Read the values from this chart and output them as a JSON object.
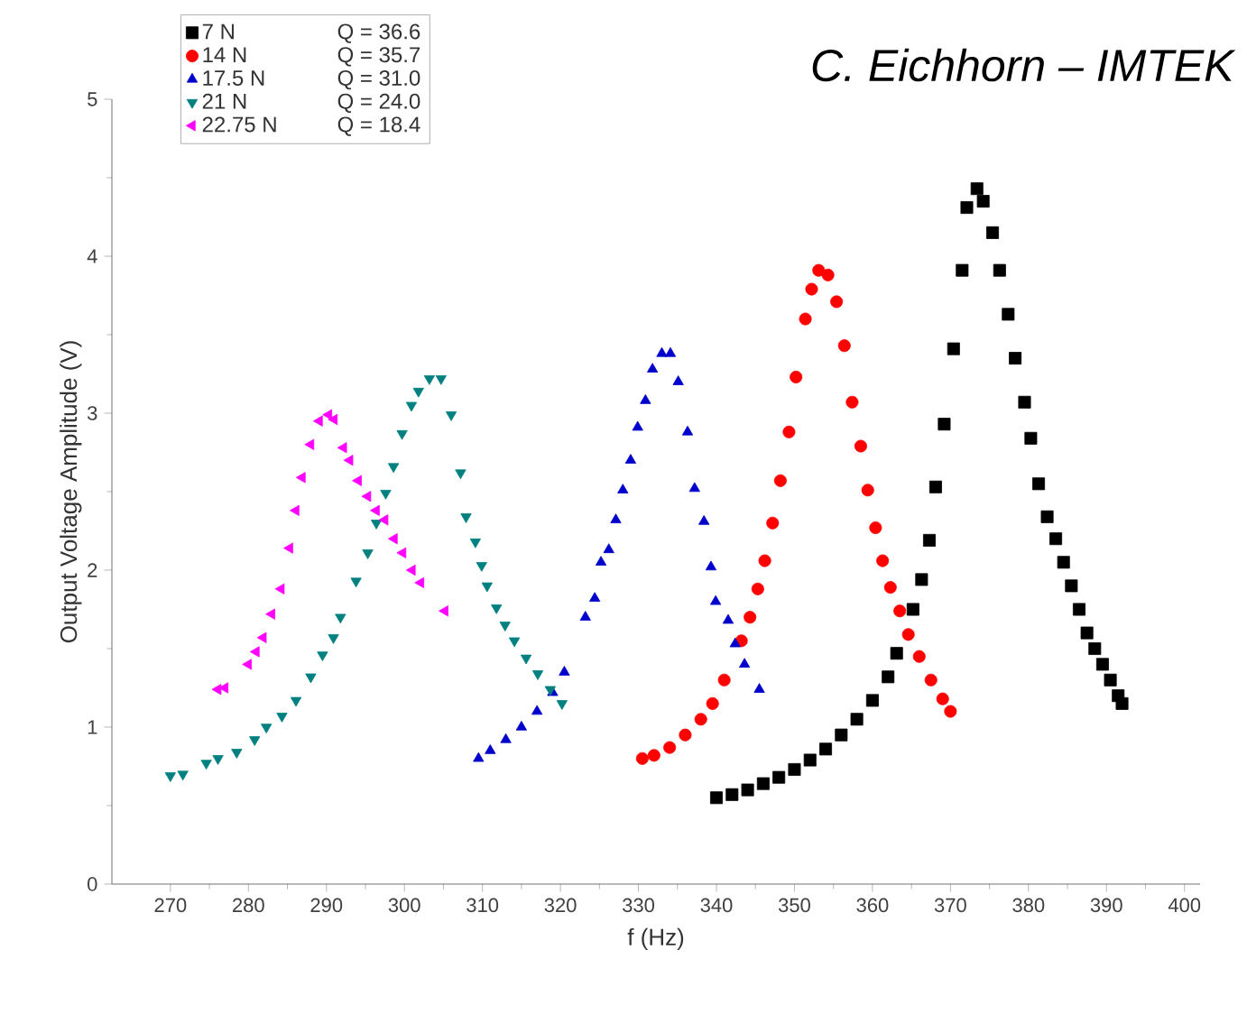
{
  "chart_data": {
    "type": "scatter",
    "xlabel": "f (Hz)",
    "ylabel": "Output Voltage Amplitude (V)",
    "xlim": [
      262.5,
      402
    ],
    "ylim": [
      0,
      5
    ],
    "xticks": [
      270,
      280,
      290,
      300,
      310,
      320,
      330,
      340,
      350,
      360,
      370,
      380,
      390,
      400
    ],
    "yticks": [
      0,
      1,
      2,
      3,
      4,
      5
    ],
    "legend": "top left",
    "annotations": [
      "C. Eichhorn – IMTEK",
      "Q = 36.6",
      "Q = 35.7",
      "Q = 31.0",
      "Q = 24.0",
      "Q = 18.4"
    ],
    "series": [
      {
        "name": "7 N",
        "color": "#000000",
        "marker": "square",
        "x": [
          340,
          342,
          344,
          346,
          348,
          350,
          352,
          354,
          356,
          358,
          360,
          362,
          363.1,
          365.2,
          366.3,
          367.3,
          368.1,
          369.2,
          370.4,
          371.5,
          372.1,
          373.4,
          374.2,
          375.4,
          376.3,
          377.4,
          378.3,
          379.5,
          380.3,
          381.3,
          382.4,
          383.5,
          384.5,
          385.5,
          386.5,
          387.5,
          388.5,
          389.5,
          390.5,
          391.5,
          392
        ],
        "values": [
          0.55,
          0.57,
          0.6,
          0.64,
          0.68,
          0.73,
          0.79,
          0.86,
          0.95,
          1.05,
          1.17,
          1.32,
          1.47,
          1.75,
          1.94,
          2.19,
          2.53,
          2.93,
          3.41,
          3.91,
          4.31,
          4.43,
          4.35,
          4.15,
          3.91,
          3.63,
          3.35,
          3.07,
          2.84,
          2.55,
          2.34,
          2.2,
          2.05,
          1.9,
          1.75,
          1.6,
          1.5,
          1.4,
          1.3,
          1.2,
          1.15
        ]
      },
      {
        "name": "14 N",
        "color": "#ff0000",
        "marker": "circle",
        "x": [
          330.5,
          332,
          334,
          336,
          338,
          339.5,
          341,
          343.2,
          344.3,
          345.3,
          346.2,
          347.2,
          348.2,
          349.3,
          350.2,
          351.4,
          352.2,
          353.1,
          354.3,
          355.4,
          356.4,
          357.4,
          358.5,
          359.4,
          360.4,
          361.3,
          362.3,
          363.5,
          364.6,
          366,
          367.5,
          369,
          370
        ],
        "values": [
          0.8,
          0.82,
          0.87,
          0.95,
          1.05,
          1.15,
          1.3,
          1.55,
          1.7,
          1.88,
          2.06,
          2.3,
          2.57,
          2.88,
          3.23,
          3.6,
          3.79,
          3.91,
          3.88,
          3.71,
          3.43,
          3.07,
          2.79,
          2.51,
          2.27,
          2.06,
          1.89,
          1.74,
          1.59,
          1.45,
          1.3,
          1.18,
          1.1
        ]
      },
      {
        "name": "17.5 N",
        "color": "#0000cc",
        "marker": "triangle",
        "x": [
          309.5,
          311,
          313,
          315,
          317,
          319,
          320.5,
          323.2,
          324.4,
          325.2,
          326.2,
          327.1,
          328,
          329,
          329.9,
          330.9,
          331.8,
          333,
          334.1,
          335.1,
          336.3,
          337.2,
          338.4,
          339.3,
          339.9,
          341.5,
          342.4,
          343.6,
          345.5
        ],
        "values": [
          0.8,
          0.85,
          0.92,
          1.0,
          1.1,
          1.22,
          1.35,
          1.7,
          1.82,
          2.05,
          2.13,
          2.32,
          2.51,
          2.7,
          2.91,
          3.08,
          3.28,
          3.38,
          3.38,
          3.2,
          2.88,
          2.52,
          2.31,
          2.02,
          1.8,
          1.68,
          1.53,
          1.4,
          1.24
        ]
      },
      {
        "name": "21 N",
        "color": "#008080",
        "marker": "triangle-down",
        "x": [
          270,
          271.6,
          274.6,
          276.1,
          278.5,
          280.8,
          282.3,
          284.3,
          286.1,
          288,
          289.5,
          290.9,
          291.8,
          293.8,
          295.3,
          296.4,
          297.6,
          298.6,
          299.7,
          300.9,
          301.8,
          303.2,
          304.7,
          306,
          307.2,
          307.9,
          309.1,
          309.9,
          310.6,
          311.8,
          312.9,
          314.1,
          315.6,
          317.1,
          318.7,
          320.2
        ],
        "values": [
          0.69,
          0.7,
          0.77,
          0.8,
          0.84,
          0.92,
          1.0,
          1.07,
          1.17,
          1.32,
          1.46,
          1.57,
          1.7,
          1.93,
          2.11,
          2.3,
          2.49,
          2.66,
          2.87,
          3.05,
          3.14,
          3.22,
          3.22,
          2.99,
          2.62,
          2.34,
          2.18,
          2.03,
          1.9,
          1.76,
          1.65,
          1.55,
          1.44,
          1.34,
          1.24,
          1.15
        ]
      },
      {
        "name": "22.75 N",
        "color": "#ff00ff",
        "marker": "triangle-left",
        "x": [
          276.1,
          277,
          280,
          281,
          281.9,
          283,
          284.2,
          285.3,
          286.1,
          286.9,
          288,
          289.1,
          290.3,
          291,
          292.2,
          293,
          294.1,
          295.3,
          296.4,
          297.5,
          298.7,
          299.8,
          301,
          302.1,
          305.2
        ],
        "values": [
          1.24,
          1.25,
          1.4,
          1.48,
          1.57,
          1.72,
          1.88,
          2.14,
          2.38,
          2.59,
          2.8,
          2.95,
          2.99,
          2.96,
          2.78,
          2.7,
          2.57,
          2.47,
          2.38,
          2.32,
          2.2,
          2.11,
          2.0,
          1.92,
          1.74
        ]
      }
    ]
  }
}
